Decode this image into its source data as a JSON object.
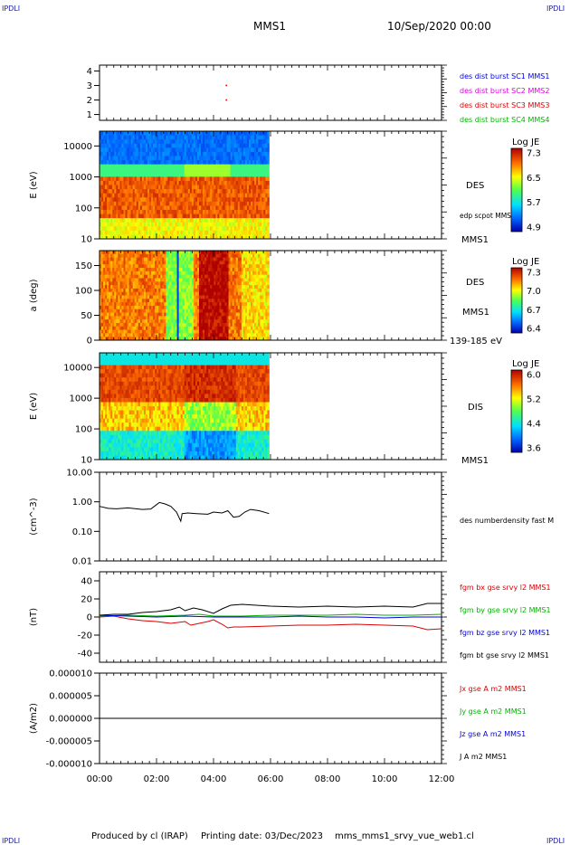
{
  "header": {
    "corner_tl": "IPDLI",
    "corner_tr": "IPDLI",
    "corner_bl": "IPDLI",
    "corner_br": "IPDLI",
    "spacecraft": "MMS1",
    "date": "10/Sep/2020 00:00"
  },
  "footer": {
    "producer": "Produced by cl (IRAP)",
    "printing_date": "Printing date: 03/Dec/2023",
    "script": "mms_mms1_srvy_vue_web1.cl"
  },
  "colors": {
    "red": "#dd0000",
    "green": "#00b400",
    "blue": "#0000dd",
    "magenta": "#dd00dd",
    "black": "#000000"
  },
  "chart_data": [
    {
      "type": "scatter",
      "panel": "burst-flags",
      "ylabel": "",
      "ylim": [
        0.6,
        4.4
      ],
      "yticks": [
        "1",
        "2",
        "3",
        "4"
      ],
      "xlim_hours": [
        0,
        12
      ],
      "series": [
        {
          "name": "des dist burst SC1 MMS1",
          "color": "#0000dd",
          "points": []
        },
        {
          "name": "des dist burst SC2 MMS2",
          "color": "#dd00dd",
          "points": []
        },
        {
          "name": "des dist burst SC3 MMS3",
          "color": "#dd0000",
          "points": [
            [
              4.45,
              3
            ],
            [
              4.45,
              2
            ]
          ]
        },
        {
          "name": "des dist burst SC4 MMS4",
          "color": "#00b400",
          "points": []
        }
      ]
    },
    {
      "type": "heatmap",
      "panel": "des-energy",
      "ylabel": "E (eV)",
      "yscale": "log",
      "ylim": [
        10,
        30000
      ],
      "yticks": [
        "10",
        "100",
        "1000",
        "10000"
      ],
      "data_end_hour": 5.95,
      "right_labels": [
        "DES",
        "edp scpot MMS1",
        "MMS1"
      ],
      "colorbar": {
        "title": "Log JE",
        "ticks": [
          "7.3",
          "6.5",
          "5.7",
          "4.9"
        ],
        "min": 4.9,
        "max": 7.3
      }
    },
    {
      "type": "heatmap",
      "panel": "des-pitch",
      "ylabel": "a (deg)",
      "ylim": [
        0,
        180
      ],
      "yticks": [
        "0",
        "50",
        "100",
        "150"
      ],
      "data_end_hour": 5.95,
      "right_labels": [
        "DES",
        "MMS1",
        "139-185 eV"
      ],
      "colorbar": {
        "title": "Log JE",
        "ticks": [
          "7.3",
          "7.0",
          "6.7",
          "6.4"
        ],
        "min": 6.4,
        "max": 7.3
      }
    },
    {
      "type": "heatmap",
      "panel": "dis-energy",
      "ylabel": "E (eV)",
      "yscale": "log",
      "ylim": [
        10,
        30000
      ],
      "yticks": [
        "10",
        "100",
        "1000",
        "10000"
      ],
      "data_end_hour": 5.95,
      "right_labels": [
        "DIS",
        "MMS1"
      ],
      "colorbar": {
        "title": "Log JE",
        "ticks": [
          "6.0",
          "5.2",
          "4.4",
          "3.6"
        ],
        "min": 3.6,
        "max": 6.0
      }
    },
    {
      "type": "line",
      "panel": "density",
      "ylabel": "(cm^-3)",
      "yscale": "log",
      "ylim": [
        0.01,
        10
      ],
      "yticks": [
        "0.01",
        "0.10",
        "1.00",
        "10.00"
      ],
      "series": [
        {
          "name": "des numberdensity fast M",
          "color": "#000000",
          "x": [
            0,
            0.3,
            0.6,
            1.0,
            1.5,
            1.8,
            2.0,
            2.1,
            2.3,
            2.5,
            2.7,
            2.85,
            2.9,
            3.1,
            3.4,
            3.8,
            4.0,
            4.3,
            4.5,
            4.7,
            4.9,
            5.1,
            5.3,
            5.6,
            5.95
          ],
          "y": [
            0.7,
            0.6,
            0.58,
            0.62,
            0.55,
            0.57,
            0.8,
            0.95,
            0.85,
            0.7,
            0.45,
            0.22,
            0.4,
            0.42,
            0.4,
            0.38,
            0.45,
            0.42,
            0.5,
            0.3,
            0.32,
            0.45,
            0.55,
            0.5,
            0.4
          ]
        }
      ]
    },
    {
      "type": "line",
      "panel": "fgm",
      "ylabel": "(nT)",
      "ylim": [
        -50,
        50
      ],
      "yticks": [
        "-40",
        "-20",
        "0",
        "20",
        "40"
      ],
      "series": [
        {
          "name": "fgm bx gse srvy l2 MMS1",
          "color": "#dd0000",
          "x": [
            0,
            0.5,
            1.0,
            1.5,
            2.0,
            2.5,
            3.0,
            3.2,
            3.5,
            3.8,
            4.0,
            4.3,
            4.5,
            4.7,
            5.0,
            6.0,
            7.0,
            8.0,
            9.0,
            10.0,
            11.0,
            11.5,
            12.0
          ],
          "y": [
            0,
            1,
            -2,
            -4,
            -5,
            -7,
            -5,
            -9,
            -7,
            -5,
            -3,
            -8,
            -12,
            -11,
            -11,
            -10,
            -9,
            -9,
            -8,
            -9,
            -10,
            -14,
            -13
          ]
        },
        {
          "name": "fgm by gse srvy l2 MMS1",
          "color": "#00b400",
          "x": [
            0,
            1,
            2,
            3,
            3.5,
            4,
            5,
            6,
            7,
            8,
            9,
            10,
            11,
            12
          ],
          "y": [
            1,
            2,
            1,
            2,
            3,
            1,
            1,
            2,
            2,
            2,
            3,
            2,
            2,
            3
          ]
        },
        {
          "name": "fgm bz gse srvy l2 MMS1",
          "color": "#0000dd",
          "x": [
            0,
            1,
            2,
            3,
            4,
            5,
            6,
            7,
            8,
            9,
            10,
            11,
            12
          ],
          "y": [
            2,
            1,
            0,
            1,
            0,
            0,
            0,
            1,
            0,
            0,
            -1,
            0,
            0
          ]
        },
        {
          "name": "fgm bt gse srvy l2 MMS1",
          "color": "#000000",
          "x": [
            0,
            0.5,
            1.0,
            1.5,
            2.0,
            2.5,
            2.8,
            3.0,
            3.3,
            3.6,
            4.0,
            4.3,
            4.6,
            5.0,
            6.0,
            7.0,
            8.0,
            9.0,
            10.0,
            11.0,
            11.5,
            12.0
          ],
          "y": [
            2,
            3,
            3,
            5,
            6,
            8,
            11,
            7,
            10,
            8,
            4,
            9,
            13,
            14,
            12,
            11,
            12,
            11,
            12,
            11,
            15,
            15
          ]
        }
      ]
    },
    {
      "type": "line",
      "panel": "current",
      "ylabel": "(A/m2)",
      "ylim": [
        -1e-05,
        1e-05
      ],
      "yticks": [
        "-0.000010",
        "-0.000005",
        "0.000000",
        "0.000005",
        "0.000010"
      ],
      "xticks": [
        "00:00",
        "02:00",
        "04:00",
        "06:00",
        "08:00",
        "10:00",
        "12:00"
      ],
      "series": [
        {
          "name": "Jx gse A m2 MMS1",
          "color": "#dd0000",
          "x": [
            0,
            12
          ],
          "y": [
            0,
            0
          ]
        },
        {
          "name": "Jy gse A m2 MMS1",
          "color": "#00b400",
          "x": [
            0,
            12
          ],
          "y": [
            0,
            0
          ]
        },
        {
          "name": "Jz gse A m2 MMS1",
          "color": "#0000dd",
          "x": [
            0,
            12
          ],
          "y": [
            0,
            0
          ]
        },
        {
          "name": "J A m2 MMS1",
          "color": "#000000",
          "x": [
            0,
            12
          ],
          "y": [
            0,
            0
          ]
        }
      ]
    }
  ]
}
